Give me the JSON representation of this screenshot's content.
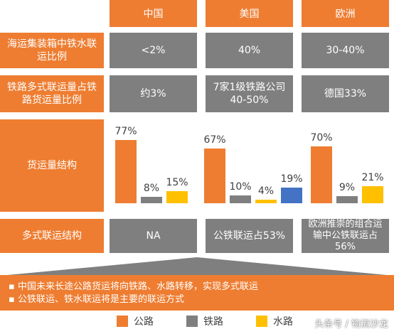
{
  "columns": [
    "中国",
    "美国",
    "欧洲"
  ],
  "rows": [
    {
      "label": "海运集装箱中铁水联运比例",
      "values": [
        "<2%",
        "40%",
        "30-40%"
      ]
    },
    {
      "label": "铁路多式联运量占铁路货运量比例",
      "values": [
        "约3%",
        "7家1级铁路公司 40-50%",
        "德国33%"
      ]
    },
    {
      "label": "货运量结构"
    },
    {
      "label": "多式联运结构",
      "values": [
        "NA",
        "公铁联运占53%",
        "欧洲推崇的组合运输中公铁联运占56%"
      ]
    }
  ],
  "chart_data": {
    "type": "bar",
    "series_names": [
      "公路",
      "铁路",
      "水路"
    ],
    "colors": {
      "road": "#ee7d31",
      "rail": "#7f7f7f",
      "water": "#ffc000",
      "water_us": "#4472c4"
    },
    "ylim": [
      0,
      80
    ],
    "groups": [
      {
        "region": "中国",
        "values": [
          77,
          8,
          15
        ],
        "labels": [
          "77%",
          "8%",
          "15%"
        ]
      },
      {
        "region": "美国",
        "values": [
          67,
          10,
          4,
          19
        ],
        "labels": [
          "67%",
          "10%",
          "4%",
          "19%"
        ]
      },
      {
        "region": "欧洲",
        "values": [
          70,
          9,
          21
        ],
        "labels": [
          "70%",
          "9%",
          "21%"
        ]
      }
    ]
  },
  "notes": [
    "中国未来长途公路货运将向铁路、水路转移，实现多式联运",
    "公铁联运、铁水联运将是主要的联运方式"
  ],
  "legend": [
    {
      "label": "公路",
      "color": "#ee7d31"
    },
    {
      "label": "铁路",
      "color": "#7f7f7f"
    },
    {
      "label": "水路",
      "color": "#ffc000"
    }
  ],
  "watermark": "头条号 / 物流沙龙"
}
